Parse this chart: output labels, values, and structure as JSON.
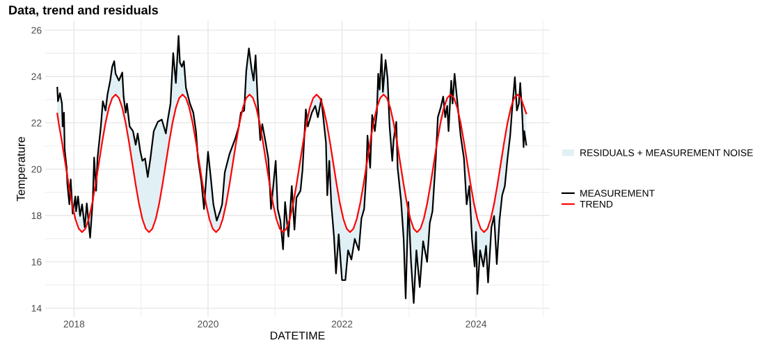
{
  "chart_data": {
    "type": "line",
    "title": "Data, trend and residuals",
    "xlabel": "DATETIME",
    "ylabel": "Temperature",
    "xlim": [
      2017.57,
      2025.1
    ],
    "ylim": [
      13.62,
      26.4
    ],
    "xticks": [
      2018,
      {
        "value": 2019,
        "label": null
      },
      2020,
      {
        "value": 2021,
        "label": null
      },
      2022,
      {
        "value": 2023,
        "label": null
      },
      2024,
      {
        "value": 2025,
        "label": null
      }
    ],
    "yticks": [
      14,
      {
        "value": 15,
        "label": null
      },
      16,
      {
        "value": 17,
        "label": null
      },
      18,
      {
        "value": 19,
        "label": null
      },
      20,
      {
        "value": 21,
        "label": null
      },
      22,
      {
        "value": 23,
        "label": null
      },
      24,
      {
        "value": 25,
        "label": null
      },
      26
    ],
    "grid": true,
    "legend": "right",
    "series": [
      {
        "name": "RESIDUALS + MEASUREMENT NOISE",
        "type": "area",
        "color": "#e0f0f5"
      },
      {
        "name": "MEASUREMENT",
        "color": "#000000",
        "x": [
          2017.75,
          2017.76,
          2017.79,
          2017.82,
          2017.83,
          2017.85,
          2017.86,
          2017.89,
          2017.9,
          2017.93,
          2017.95,
          2017.98,
          2018.02,
          2018.03,
          2018.06,
          2018.09,
          2018.12,
          2018.16,
          2018.19,
          2018.24,
          2018.28,
          2018.3,
          2018.33,
          2018.35,
          2018.4,
          2018.43,
          2018.47,
          2018.5,
          2018.54,
          2018.57,
          2018.6,
          2018.62,
          2018.67,
          2018.72,
          2018.74,
          2018.77,
          2018.79,
          2018.83,
          2018.88,
          2018.92,
          2018.95,
          2018.99,
          2019.02,
          2019.06,
          2019.1,
          2019.14,
          2019.19,
          2019.25,
          2019.31,
          2019.37,
          2019.4,
          2019.44,
          2019.48,
          2019.52,
          2019.56,
          2019.58,
          2019.61,
          2019.64,
          2019.67,
          2019.73,
          2019.78,
          2019.82,
          2019.85,
          2019.9,
          2019.94,
          2020.0,
          2020.04,
          2020.08,
          2020.13,
          2020.18,
          2020.21,
          2020.25,
          2020.32,
          2020.41,
          2020.46,
          2020.49,
          2020.54,
          2020.57,
          2020.61,
          2020.65,
          2020.68,
          2020.71,
          2020.74,
          2020.78,
          2020.81,
          2020.86,
          2020.9,
          2020.94,
          2021.01,
          2021.04,
          2021.08,
          2021.12,
          2021.15,
          2021.2,
          2021.25,
          2021.29,
          2021.32,
          2021.38,
          2021.41,
          2021.46,
          2021.49,
          2021.55,
          2021.6,
          2021.64,
          2021.69,
          2021.72,
          2021.76,
          2021.78,
          2021.81,
          2021.84,
          2021.88,
          2021.91,
          2021.95,
          2022.0,
          2022.05,
          2022.09,
          2022.14,
          2022.19,
          2022.25,
          2022.29,
          2022.33,
          2022.36,
          2022.38,
          2022.42,
          2022.45,
          2022.49,
          2022.52,
          2022.54,
          2022.56,
          2022.59,
          2022.61,
          2022.65,
          2022.68,
          2022.71,
          2022.75,
          2022.77,
          2022.81,
          2022.83,
          2022.88,
          2022.92,
          2022.95,
          2022.99,
          2023.03,
          2023.07,
          2023.11,
          2023.16,
          2023.21,
          2023.27,
          2023.31,
          2023.35,
          2023.4,
          2023.43,
          2023.47,
          2023.51,
          2023.54,
          2023.57,
          2023.59,
          2023.63,
          2023.65,
          2023.68,
          2023.72,
          2023.77,
          2023.82,
          2023.86,
          2023.9,
          2023.94,
          2023.98,
          2024.0,
          2024.02,
          2024.06,
          2024.11,
          2024.15,
          2024.18,
          2024.23,
          2024.27,
          2024.31,
          2024.35,
          2024.39,
          2024.43,
          2024.47,
          2024.51,
          2024.54,
          2024.58,
          2024.61,
          2024.64,
          2024.66,
          2024.69,
          2024.71,
          2024.72,
          2024.75
        ],
        "values": [
          23.52,
          22.93,
          23.28,
          22.83,
          21.84,
          22.44,
          20.85,
          20.06,
          19.37,
          18.48,
          19.56,
          18.08,
          18.82,
          18.18,
          18.82,
          17.98,
          18.48,
          17.49,
          18.52,
          17.04,
          18.67,
          20.5,
          19.07,
          20.46,
          21.84,
          22.93,
          22.53,
          23.23,
          23.82,
          24.42,
          24.66,
          24.12,
          23.82,
          24.17,
          23.13,
          22.44,
          22.83,
          21.84,
          21.64,
          21.05,
          21.54,
          20.75,
          20.36,
          20.46,
          19.66,
          20.46,
          21.64,
          22.04,
          22.14,
          21.54,
          22.14,
          22.83,
          25.01,
          23.72,
          25.75,
          24.61,
          24.42,
          24.66,
          23.52,
          22.83,
          22.44,
          21.64,
          20.46,
          19.47,
          18.28,
          20.75,
          19.66,
          18.48,
          17.78,
          18.18,
          18.48,
          19.86,
          20.65,
          21.35,
          21.84,
          22.44,
          22.53,
          24.22,
          25.21,
          24.32,
          23.82,
          24.91,
          23.03,
          21.25,
          21.94,
          21.15,
          20.46,
          18.28,
          20.36,
          18.28,
          17.78,
          16.54,
          18.58,
          17.09,
          19.27,
          17.39,
          18.77,
          19.07,
          19.96,
          22.58,
          21.84,
          22.44,
          22.73,
          22.24,
          23.03,
          22.24,
          21.15,
          18.87,
          20.36,
          18.48,
          17.09,
          15.5,
          17.19,
          15.21,
          15.21,
          16.5,
          16.1,
          16.99,
          16.5,
          17.88,
          18.28,
          19.66,
          21.45,
          20.06,
          22.34,
          21.64,
          22.44,
          24.12,
          23.43,
          24.96,
          23.33,
          24.71,
          23.92,
          21.84,
          20.36,
          21.25,
          22.04,
          20.06,
          18.67,
          16.99,
          14.42,
          18.58,
          16.0,
          14.22,
          16.5,
          14.91,
          16.89,
          16.0,
          17.68,
          18.18,
          20.46,
          22.24,
          22.63,
          23.13,
          22.24,
          22.73,
          21.64,
          23.82,
          22.83,
          24.12,
          22.93,
          21.45,
          20.46,
          18.48,
          19.27,
          16.99,
          15.8,
          17.29,
          14.61,
          16.5,
          15.8,
          16.69,
          15.11,
          17.49,
          17.98,
          15.9,
          17.78,
          18.87,
          19.27,
          20.46,
          21.45,
          22.63,
          23.97,
          22.53,
          22.83,
          23.72,
          22.34,
          20.95,
          21.64,
          21.05
        ]
      },
      {
        "name": "TREND",
        "color": "#ff0000",
        "x": [
          2017.75,
          2017.77,
          2017.82,
          2017.87,
          2017.92,
          2017.97,
          2018.02,
          2018.07,
          2018.12,
          2018.17,
          2018.22,
          2018.27,
          2018.32,
          2018.37,
          2018.42,
          2018.47,
          2018.52,
          2018.57,
          2018.62,
          2018.67,
          2018.72,
          2018.77,
          2018.82,
          2018.87,
          2018.92,
          2018.97,
          2019.02,
          2019.07,
          2019.12,
          2019.17,
          2019.22,
          2019.27,
          2019.32,
          2019.37,
          2019.42,
          2019.47,
          2019.52,
          2019.57,
          2019.62,
          2019.67,
          2019.72,
          2019.77,
          2019.82,
          2019.87,
          2019.92,
          2019.97,
          2020.02,
          2020.07,
          2020.12,
          2020.17,
          2020.22,
          2020.27,
          2020.32,
          2020.37,
          2020.42,
          2020.47,
          2020.52,
          2020.57,
          2020.62,
          2020.67,
          2020.72,
          2020.77,
          2020.82,
          2020.87,
          2020.92,
          2020.97,
          2021.02,
          2021.07,
          2021.12,
          2021.17,
          2021.22,
          2021.27,
          2021.32,
          2021.37,
          2021.42,
          2021.47,
          2021.52,
          2021.57,
          2021.62,
          2021.67,
          2021.72,
          2021.77,
          2021.82,
          2021.87,
          2021.92,
          2021.97,
          2022.02,
          2022.07,
          2022.12,
          2022.17,
          2022.22,
          2022.27,
          2022.32,
          2022.37,
          2022.42,
          2022.47,
          2022.52,
          2022.57,
          2022.62,
          2022.67,
          2022.72,
          2022.77,
          2022.82,
          2022.87,
          2022.92,
          2022.97,
          2023.02,
          2023.07,
          2023.12,
          2023.17,
          2023.22,
          2023.27,
          2023.32,
          2023.37,
          2023.42,
          2023.47,
          2023.52,
          2023.57,
          2023.62,
          2023.67,
          2023.72,
          2023.77,
          2023.82,
          2023.87,
          2023.92,
          2023.97,
          2024.02,
          2024.07,
          2024.12,
          2024.17,
          2024.22,
          2024.27,
          2024.32,
          2024.37,
          2024.42,
          2024.47,
          2024.52,
          2024.57,
          2024.62,
          2024.67,
          2024.72,
          2024.75
        ],
        "values": [
          22.4,
          22.0,
          21.17,
          20.25,
          19.33,
          18.5,
          17.85,
          17.43,
          17.28,
          17.43,
          17.85,
          18.5,
          19.33,
          20.25,
          21.17,
          22.0,
          22.65,
          23.07,
          23.22,
          23.07,
          22.65,
          22.0,
          21.17,
          20.25,
          19.33,
          18.5,
          17.85,
          17.43,
          17.28,
          17.43,
          17.85,
          18.5,
          19.33,
          20.25,
          21.17,
          22.0,
          22.65,
          23.07,
          23.22,
          23.07,
          22.65,
          22.0,
          21.17,
          20.25,
          19.33,
          18.5,
          17.85,
          17.43,
          17.28,
          17.43,
          17.85,
          18.5,
          19.33,
          20.25,
          21.17,
          22.0,
          22.65,
          23.07,
          23.22,
          23.07,
          22.65,
          22.0,
          21.17,
          20.25,
          19.33,
          18.5,
          17.85,
          17.43,
          17.28,
          17.43,
          17.85,
          18.5,
          19.33,
          20.25,
          21.17,
          22.0,
          22.65,
          23.07,
          23.22,
          23.07,
          22.65,
          22.0,
          21.17,
          20.25,
          19.33,
          18.5,
          17.85,
          17.43,
          17.28,
          17.43,
          17.85,
          18.5,
          19.33,
          20.25,
          21.17,
          22.0,
          22.65,
          23.07,
          23.22,
          23.07,
          22.65,
          22.0,
          21.17,
          20.25,
          19.33,
          18.5,
          17.85,
          17.43,
          17.28,
          17.43,
          17.85,
          18.5,
          19.33,
          20.25,
          21.17,
          22.0,
          22.65,
          23.07,
          23.22,
          23.07,
          22.65,
          22.0,
          21.17,
          20.25,
          19.33,
          18.5,
          17.85,
          17.43,
          17.28,
          17.43,
          17.85,
          18.5,
          19.33,
          20.25,
          21.17,
          22.0,
          22.65,
          23.07,
          23.22,
          23.07,
          22.65,
          22.4
        ]
      }
    ]
  }
}
